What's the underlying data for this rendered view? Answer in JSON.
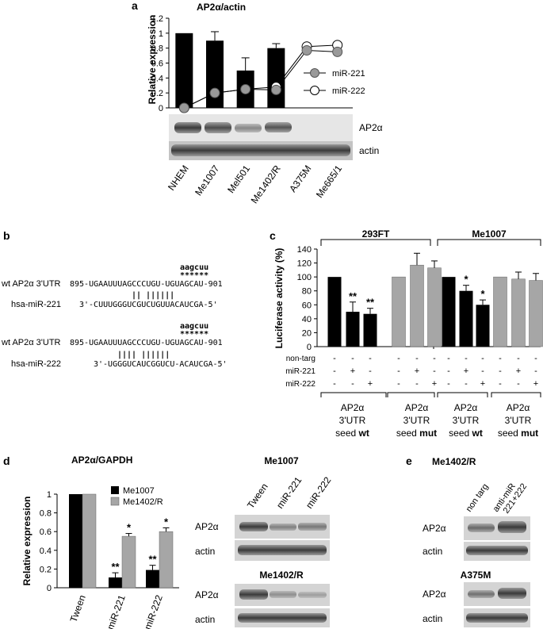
{
  "panel_a": {
    "letter": "a",
    "title": "AP2α/actin",
    "ylabel": "Relative expression",
    "yticks": [
      "0",
      "0.2",
      "0.4",
      "0.6",
      "0.8",
      "1",
      "1.2"
    ],
    "legend": [
      "miR-221",
      "miR-222"
    ],
    "blot_labels": [
      "AP2α",
      "actin"
    ],
    "lanes": [
      "NHEM",
      "Me1007",
      "Mel501",
      "Me1402/R",
      "A375M",
      "Me665/1"
    ]
  },
  "panel_b": {
    "letter": "b",
    "lines": [
      {
        "label": "wt AP2α 3'UTR",
        "seq": "895-UGAAUUUAGCCCUGU-UGUAGCAU-901",
        "annot": "aagcuu",
        "stars": "******"
      },
      {
        "label": "hsa-miR-221",
        "seq": "3'-CUUUGGGUCGUCUGUUACAUCGA-5'",
        "pairs": "||           ||||||"
      },
      {
        "label": "wt AP2α 3'UTR",
        "seq": "895-UGAAUUUAGCCCUGU-UGUAGCAU-901",
        "annot": "aagcuu",
        "stars": "******"
      },
      {
        "label": "hsa-miR-222",
        "seq": "3'-UGGGUCAUCGGUCU-ACAUCGA-5'",
        "pairs": "||||      ||||||"
      }
    ]
  },
  "panel_c": {
    "letter": "c",
    "groups": [
      "293FT",
      "Me1007"
    ],
    "ylabel": "Luciferase activity (%)",
    "yticks": [
      "0",
      "20",
      "40",
      "60",
      "80",
      "100",
      "120",
      "140"
    ],
    "row_labels": [
      "non-targ",
      "miR-221",
      "miR-222"
    ],
    "signs": [
      [
        "-",
        "-",
        "-"
      ],
      [
        "-",
        "+",
        "-"
      ],
      [
        "-",
        "-",
        "+"
      ]
    ],
    "stars": [
      "**",
      "**",
      "*",
      "*"
    ],
    "subsets": [
      {
        "l1": "AP2α",
        "l2": "3'UTR",
        "l3a": "seed ",
        "l3b": "wt"
      },
      {
        "l1": "AP2α",
        "l2": "3'UTR",
        "l3a": "seed ",
        "l3b": "mut"
      },
      {
        "l1": "AP2α",
        "l2": "3'UTR",
        "l3a": "seed ",
        "l3b": "wt"
      },
      {
        "l1": "AP2α",
        "l2": "3'UTR",
        "l3a": "seed ",
        "l3b": "mut"
      }
    ]
  },
  "panel_d": {
    "letter": "d",
    "title": "AP2α/GAPDH",
    "ylabel": "Relative expression",
    "yticks": [
      "0",
      "0.2",
      "0.4",
      "0.6",
      "0.8",
      "1"
    ],
    "legend": [
      "Me1007",
      "Me1402/R"
    ],
    "categories": [
      "Tween",
      "miR-221",
      "miR-222"
    ],
    "stars": [
      "**",
      "*",
      "**",
      "*"
    ],
    "blot1_title": "Me1007",
    "blot1_lanes": [
      "Tween",
      "miR-221",
      "miR-222"
    ],
    "blot2_title": "Me1402/R",
    "blot_labels": [
      "AP2α",
      "actin"
    ]
  },
  "panel_e": {
    "letter": "e",
    "title1": "Me1402/R",
    "lanes": [
      "non targ",
      "anti-miR",
      "221+222"
    ],
    "title2": "A375M",
    "blot_labels": [
      "AP2α",
      "actin"
    ]
  },
  "chart_data": [
    {
      "type": "bar",
      "title": "AP2α/actin",
      "ylabel": "Relative expression",
      "ylim": [
        0,
        1.2
      ],
      "categories": [
        "NHEM",
        "Me1007",
        "Mel501",
        "Me1402/R",
        "A375M",
        "Me665/1"
      ],
      "series": [
        {
          "name": "AP2α/actin",
          "values": [
            1.0,
            0.9,
            0.5,
            0.8,
            0,
            0
          ],
          "errors": [
            0,
            0.12,
            0.17,
            0.06,
            0,
            0
          ]
        },
        {
          "name": "miR-221",
          "values": [
            0.0,
            0.2,
            0.25,
            0.24,
            0.77,
            0.75
          ]
        },
        {
          "name": "miR-222",
          "values": [
            0.0,
            0.2,
            0.25,
            0.28,
            0.82,
            0.84
          ]
        }
      ]
    },
    {
      "type": "bar",
      "ylabel": "Luciferase activity (%)",
      "ylim": [
        0,
        140
      ],
      "categories": [
        "293FT wt non-targ",
        "293FT wt miR-221",
        "293FT wt miR-222",
        "293FT mut non-targ",
        "293FT mut miR-221",
        "293FT mut miR-222",
        "Me1007 wt non-targ",
        "Me1007 wt miR-221",
        "Me1007 wt miR-222",
        "Me1007 mut non-targ",
        "Me1007 mut miR-221",
        "Me1007 mut miR-222"
      ],
      "values": [
        100,
        50,
        47,
        100,
        117,
        113,
        100,
        80,
        60,
        100,
        97,
        95
      ],
      "errors": [
        0,
        14,
        8,
        0,
        17,
        10,
        0,
        8,
        7,
        0,
        10,
        10
      ]
    },
    {
      "type": "bar",
      "title": "AP2α/GAPDH",
      "ylabel": "Relative expression",
      "ylim": [
        0,
        1
      ],
      "categories": [
        "Tween",
        "miR-221",
        "miR-222"
      ],
      "series": [
        {
          "name": "Me1007",
          "values": [
            1.0,
            0.11,
            0.19
          ],
          "errors": [
            0,
            0.05,
            0.05
          ]
        },
        {
          "name": "Me1402/R",
          "values": [
            1.0,
            0.55,
            0.6
          ],
          "errors": [
            0,
            0.03,
            0.04
          ]
        }
      ]
    }
  ],
  "colors": {
    "black_bar": "#000000",
    "gray_bar": "#a6a6a6",
    "mir221_dot": "#999999",
    "mir222_dot": "#ffffff"
  }
}
